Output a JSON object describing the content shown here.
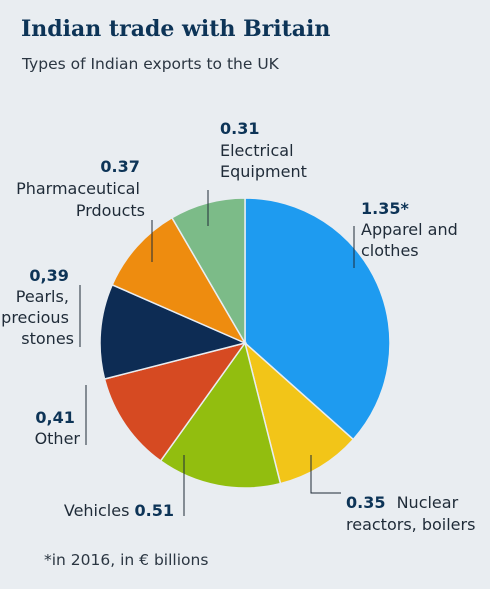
{
  "header": {
    "title": "Indian trade with Britain",
    "subtitle": "Types of Indian exports to the UK"
  },
  "footnote": "*in 2016, in € billions",
  "chart_data": {
    "type": "pie",
    "title": "Indian trade with Britain",
    "subtitle": "Types of Indian exports to the UK",
    "unit": "€ billions",
    "slices": [
      {
        "label": "Apparel and clothes",
        "value": 1.35,
        "value_text": "1.35*",
        "color": "#1e9bf0"
      },
      {
        "label": "Nuclear reactors, boilers",
        "value": 0.35,
        "value_text": "0.35",
        "color": "#f2c518"
      },
      {
        "label": "Vehicles",
        "value": 0.51,
        "value_text": "0.51",
        "color": "#92be0f"
      },
      {
        "label": "Other",
        "value": 0.41,
        "value_text": "0,41",
        "color": "#d64a22"
      },
      {
        "label": "Pearls, precious stones",
        "value": 0.39,
        "value_text": "0,39",
        "color": "#0d2c54"
      },
      {
        "label": "Pharmaceutical Prdoucts",
        "value": 0.37,
        "value_text": "0.37",
        "color": "#ee8c0f"
      },
      {
        "label": "Electrical Equipment",
        "value": 0.31,
        "value_text": "0.31",
        "color": "#7cbb88"
      }
    ],
    "label_lines": [
      [
        "Apparel and",
        "clothes"
      ],
      [
        "Nuclear",
        "reactors, boilers"
      ],
      [
        "Vehicles"
      ],
      [
        "Other"
      ],
      [
        "Pearls,",
        "precious",
        "stones"
      ],
      [
        "Pharmaceutical",
        "Prdoucts"
      ],
      [
        "Electrical",
        "Equipment"
      ]
    ]
  }
}
